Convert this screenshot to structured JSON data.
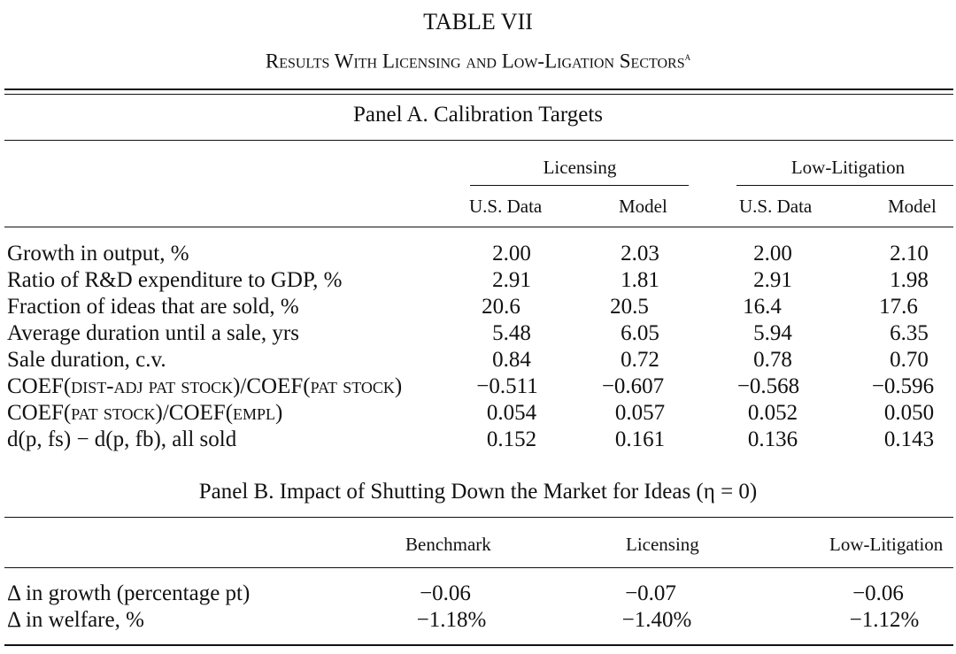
{
  "table": {
    "number": "TABLE VII",
    "caption": "Results With Licensing and Low-Ligation Sectors",
    "footnote_marker": "a"
  },
  "panel_a": {
    "title": "Panel A. Calibration Targets",
    "group_headers": [
      "Licensing",
      "Low-Litigation"
    ],
    "sub_headers": [
      "U.S. Data",
      "Model",
      "U.S. Data",
      "Model"
    ],
    "rows": [
      {
        "label": "Growth in output, %",
        "values": [
          "2.00",
          "2.03",
          "2.00",
          "2.10"
        ]
      },
      {
        "label": "Ratio of R&D expenditure to GDP, %",
        "values": [
          "2.91",
          "1.81",
          "2.91",
          "1.98"
        ]
      },
      {
        "label": "Fraction of ideas that are sold, %",
        "values": [
          "20.6",
          "20.5",
          "16.4",
          "17.6"
        ]
      },
      {
        "label": "Average duration until a sale, yrs",
        "values": [
          "5.48",
          "6.05",
          "5.94",
          "6.35"
        ]
      },
      {
        "label": "Sale duration, c.v.",
        "values": [
          "0.84",
          "0.72",
          "0.78",
          "0.70"
        ]
      },
      {
        "label": "COEF(dist-adj pat stock)/COEF(pat stock)",
        "values": [
          "−0.511",
          "−0.607",
          "−0.568",
          "−0.596"
        ]
      },
      {
        "label": "COEF(pat stock)/COEF(empl)",
        "values": [
          "0.054",
          "0.057",
          "0.052",
          "0.050"
        ]
      },
      {
        "label": "d(p, fs) − d(p, fb), all sold",
        "values": [
          "0.152",
          "0.161",
          "0.136",
          "0.143"
        ]
      }
    ]
  },
  "panel_b": {
    "title": "Panel B. Impact of Shutting Down the Market for Ideas (η = 0)",
    "headers": [
      "Benchmark",
      "Licensing",
      "Low-Litigation"
    ],
    "rows": [
      {
        "label": "Δ in growth (percentage pt)",
        "values": [
          "−0.06",
          "−0.07",
          "−0.06"
        ]
      },
      {
        "label": "Δ in welfare, %",
        "values": [
          "−1.18%",
          "−1.40%",
          "−1.12%"
        ]
      }
    ]
  }
}
